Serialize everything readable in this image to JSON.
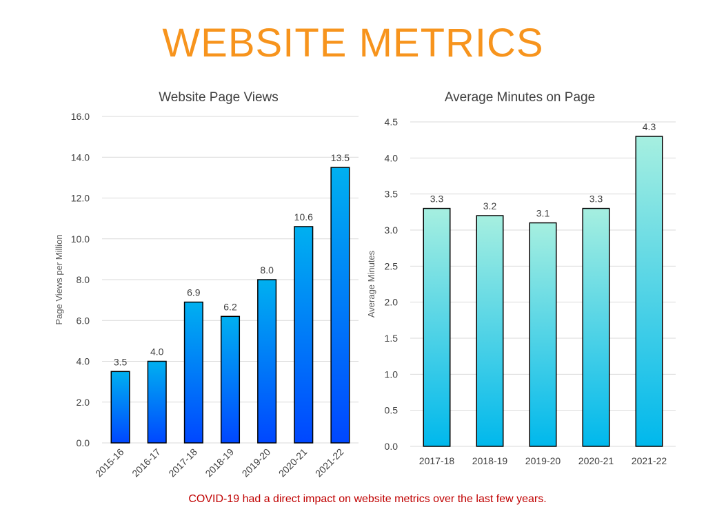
{
  "page": {
    "title": "WEBSITE METRICS",
    "footnote": "COVID-19 had a direct impact on website metrics over the last few years."
  },
  "colors": {
    "title": "#f7941d",
    "footnote": "#c00000",
    "left_bar_top": "#00b0f0",
    "left_bar_bottom": "#0047ff",
    "right_bar_top": "#a6efe0",
    "right_bar_bottom": "#00b8ec",
    "grid": "#d9d9d9",
    "axis_text": "#404040"
  },
  "chart_data": [
    {
      "type": "bar",
      "title": "Website Page Views",
      "xlabel": "",
      "ylabel": "Page Views per Million",
      "categories": [
        "2015-16",
        "2016-17",
        "2017-18",
        "2018-19",
        "2019-20",
        "2020-21",
        "2021-22"
      ],
      "values": [
        3.5,
        4.0,
        6.9,
        6.2,
        8.0,
        10.6,
        13.5
      ],
      "value_labels": [
        "3.5",
        "4.0",
        "6.9",
        "6.2",
        "8.0",
        "10.6",
        "13.5"
      ],
      "ylim": [
        0,
        16
      ],
      "yticks": [
        "0.0",
        "2.0",
        "4.0",
        "6.0",
        "8.0",
        "10.0",
        "12.0",
        "14.0",
        "16.0"
      ],
      "grid": true,
      "legend": "none",
      "x_tick_rotation": "rotated"
    },
    {
      "type": "bar",
      "title": "Average Minutes on Page",
      "xlabel": "",
      "ylabel": "Average Minutes",
      "categories": [
        "2017-18",
        "2018-19",
        "2019-20",
        "2020-21",
        "2021-22"
      ],
      "values": [
        3.3,
        3.2,
        3.1,
        3.3,
        4.3
      ],
      "value_labels": [
        "3.3",
        "3.2",
        "3.1",
        "3.3",
        "4.3"
      ],
      "ylim": [
        0,
        4.5
      ],
      "yticks": [
        "0.0",
        "0.5",
        "1.0",
        "1.5",
        "2.0",
        "2.5",
        "3.0",
        "3.5",
        "4.0",
        "4.5"
      ],
      "grid": true,
      "legend": "none",
      "x_tick_rotation": "horizontal"
    }
  ]
}
